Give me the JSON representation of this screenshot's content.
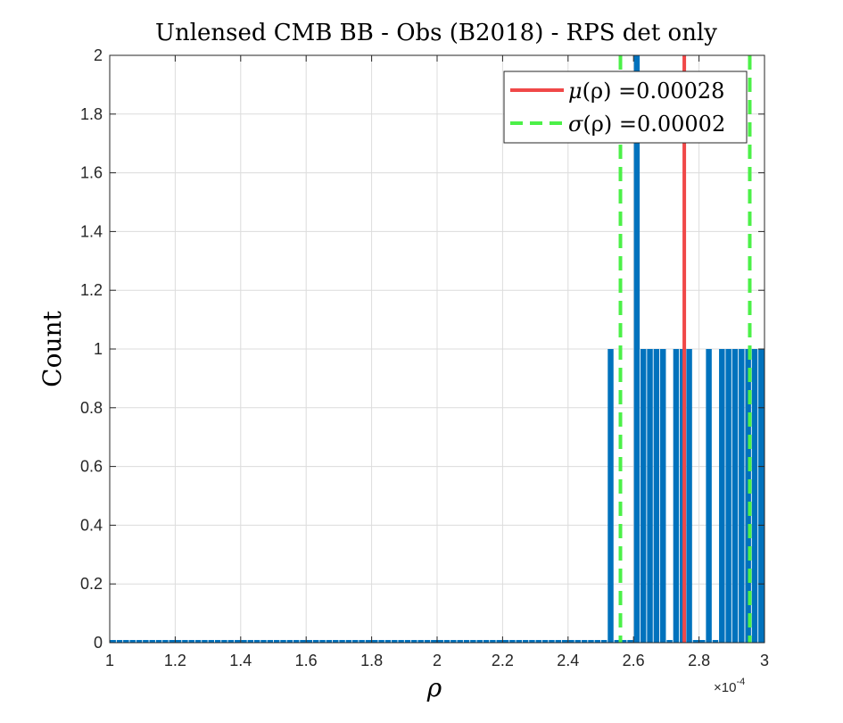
{
  "chart_data": {
    "type": "bar",
    "title": "Unlensed CMB BB - Obs (B2018) - RPS det only",
    "xlabel": "ρ",
    "ylabel": "Count",
    "x_exponent_label": "×10",
    "x_exponent_power": "-4",
    "xlim": [
      1.0,
      3.0
    ],
    "ylim": [
      0,
      2
    ],
    "xticks": [
      "1",
      "1.2",
      "1.4",
      "1.6",
      "1.8",
      "2",
      "2.2",
      "2.4",
      "2.6",
      "2.8",
      "3"
    ],
    "yticks": [
      "0",
      "0.2",
      "0.4",
      "0.6",
      "0.8",
      "1",
      "1.2",
      "1.4",
      "1.6",
      "1.8",
      "2"
    ],
    "grid": true,
    "bar_color": "#0072BD",
    "bins": {
      "start": 1.0,
      "width": 0.02,
      "counts": [
        0,
        0,
        0,
        0,
        0,
        0,
        0,
        0,
        0,
        0,
        0,
        0,
        0,
        0,
        0,
        0,
        0,
        0,
        0,
        0,
        0,
        0,
        0,
        0,
        0,
        0,
        0,
        0,
        0,
        0,
        0,
        0,
        0,
        0,
        0,
        0,
        0,
        0,
        0,
        0,
        0,
        0,
        0,
        0,
        0,
        0,
        0,
        0,
        0,
        0,
        0,
        0,
        0,
        0,
        0,
        0,
        0,
        0,
        0,
        0,
        0,
        0,
        0,
        0,
        0,
        0,
        0,
        0,
        0,
        0,
        0,
        0,
        0,
        0,
        0,
        0,
        1,
        0,
        0,
        0,
        2,
        1,
        1,
        1,
        1,
        0,
        1,
        1,
        1,
        0,
        0,
        1,
        0,
        1,
        1,
        1,
        1,
        1,
        1,
        1
      ]
    },
    "lines": [
      {
        "name": "mean",
        "x": 2.755,
        "style": "solid",
        "color": "#F04848"
      },
      {
        "name": "sigma-low",
        "x": 2.56,
        "style": "dashed",
        "color": "#4CF048"
      },
      {
        "name": "sigma-high",
        "x": 2.955,
        "style": "dashed",
        "color": "#4CF048"
      }
    ],
    "legend": {
      "position": "top-right",
      "entries": [
        {
          "symbol": "μ",
          "text": "(ρ) =0.00028",
          "color": "#F04848",
          "style": "solid"
        },
        {
          "symbol": "σ",
          "text": "(ρ) =0.00002",
          "color": "#4CF048",
          "style": "dashed"
        }
      ]
    }
  }
}
